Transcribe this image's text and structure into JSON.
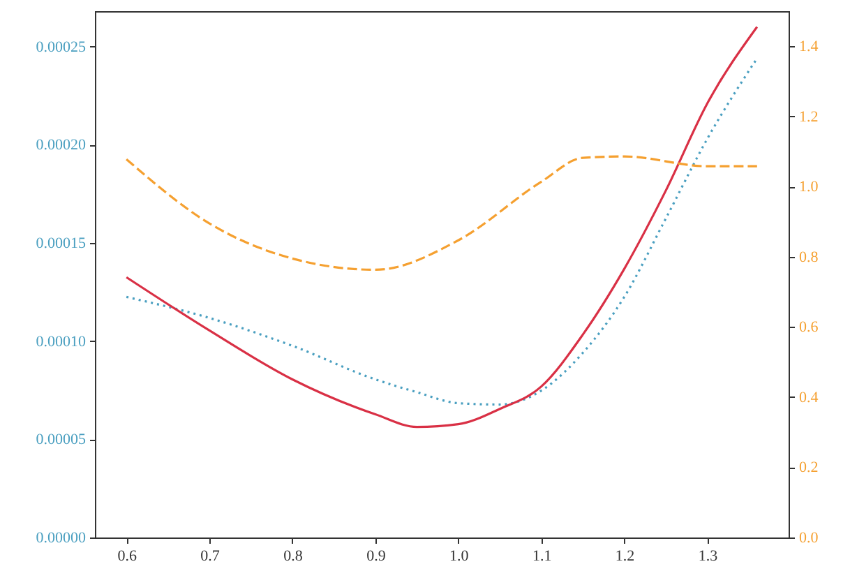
{
  "chart_data": {
    "type": "line",
    "x": [
      0.6,
      0.7,
      0.8,
      0.9,
      0.95,
      1.0,
      1.05,
      1.1,
      1.15,
      1.2,
      1.25,
      1.3,
      1.36
    ],
    "series": [
      {
        "color": "#4a9fc0",
        "line_style": "dotted",
        "values": [
          0.0001225,
          0.0001118,
          9.76e-05,
          8.05e-05,
          7.4e-05,
          6.84e-05,
          6.77e-05,
          7.48e-05,
          9.4e-05,
          0.0001225,
          0.0001624,
          0.000203,
          0.000244
        ]
      },
      {
        "color": "#d93045",
        "line_style": "solid",
        "values": [
          0.0001325,
          0.0001054,
          8.05e-05,
          6.27e-05,
          5.63e-05,
          5.77e-05,
          6.55e-05,
          7.69e-05,
          0.0001033,
          0.0001368,
          0.0001766,
          0.000221,
          0.00026
        ]
      },
      {
        "color": "#f5a030",
        "line_style": "dashed",
        "axis": "y2",
        "x": [
          0.6,
          0.7,
          0.8,
          0.9,
          1.0,
          1.1,
          1.15,
          1.2,
          1.3,
          1.36
        ],
        "values": [
          1.078,
          0.895,
          0.795,
          0.763,
          0.847,
          1.014,
          1.082,
          1.086,
          1.058,
          1.058
        ]
      }
    ],
    "xlim": [
      0.562,
      1.398
    ],
    "xticks": [
      {
        "value": 0.6,
        "label": "0.6"
      },
      {
        "value": 0.7,
        "label": "0.7"
      },
      {
        "value": 0.8,
        "label": "0.8"
      },
      {
        "value": 0.9,
        "label": "0.9"
      },
      {
        "value": 1.0,
        "label": "1.0"
      },
      {
        "value": 1.1,
        "label": "1.1"
      },
      {
        "value": 1.2,
        "label": "1.2"
      },
      {
        "value": 1.3,
        "label": "1.3"
      }
    ],
    "ylim": [
      0,
      0.000268
    ],
    "yticks": [
      {
        "value": 0,
        "label": "0.00000"
      },
      {
        "value": 5e-05,
        "label": "0.00005"
      },
      {
        "value": 0.0001,
        "label": "0.00010"
      },
      {
        "value": 0.00015,
        "label": "0.00015"
      },
      {
        "value": 0.0002,
        "label": "0.00020"
      },
      {
        "value": 0.00025,
        "label": "0.00025"
      }
    ],
    "y2lim": [
      0,
      1.5
    ],
    "y2ticks": [
      {
        "value": 0,
        "label": "0.0"
      },
      {
        "value": 0.2,
        "label": "0.2"
      },
      {
        "value": 0.4,
        "label": "0.4"
      },
      {
        "value": 0.6,
        "label": "0.6"
      },
      {
        "value": 0.8,
        "label": "0.8"
      },
      {
        "value": 1.0,
        "label": "1.0"
      },
      {
        "value": 1.2,
        "label": "1.2"
      },
      {
        "value": 1.4,
        "label": "1.4"
      }
    ]
  }
}
